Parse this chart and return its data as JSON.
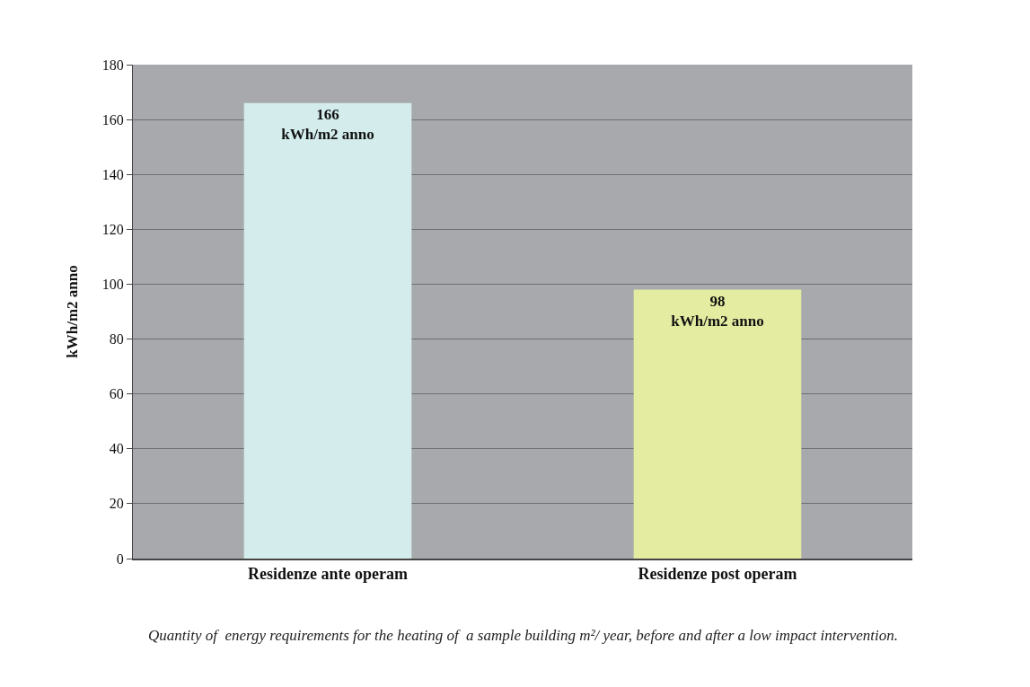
{
  "chart_data": {
    "type": "bar",
    "categories": [
      "Residenze ante operam",
      "Residenze post operam"
    ],
    "values": [
      166,
      98
    ],
    "colors": [
      "#d4ecec",
      "#e4eca2"
    ],
    "value_labels": [
      "166\nkWh/m2 anno",
      "98\nkWh/m2 anno"
    ],
    "ylabel": "kWh/m2 anno",
    "ylim": [
      0,
      180
    ],
    "yticks": [
      0,
      20,
      40,
      60,
      80,
      100,
      120,
      140,
      160,
      180
    ],
    "grid": "y",
    "legend": false,
    "annotations": [
      "Quantity of  energy requirements for the heating of  a sample building m²/ year, before and after a low impact intervention."
    ]
  }
}
